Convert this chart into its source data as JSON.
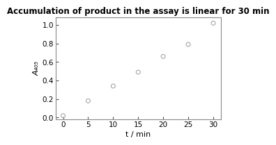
{
  "title": "Accumulation of product in the assay is linear for 30 min",
  "xlabel": "t / min",
  "ylabel": "A₄₀₅",
  "x": [
    0,
    5,
    10,
    15,
    20,
    25,
    30
  ],
  "y": [
    0.02,
    0.18,
    0.34,
    0.49,
    0.66,
    0.79,
    1.02
  ],
  "xlim": [
    -1.5,
    31.5
  ],
  "ylim": [
    -0.02,
    1.08
  ],
  "xticks": [
    0,
    5,
    10,
    15,
    20,
    25,
    30
  ],
  "yticks": [
    0.0,
    0.2,
    0.4,
    0.6,
    0.8,
    1.0
  ],
  "marker_color": "#999999",
  "bg_color": "#ffffff",
  "panel_bg": "#ffffff",
  "border_color": "#888888",
  "title_fontsize": 8.5,
  "label_fontsize": 8,
  "tick_fontsize": 7.5
}
